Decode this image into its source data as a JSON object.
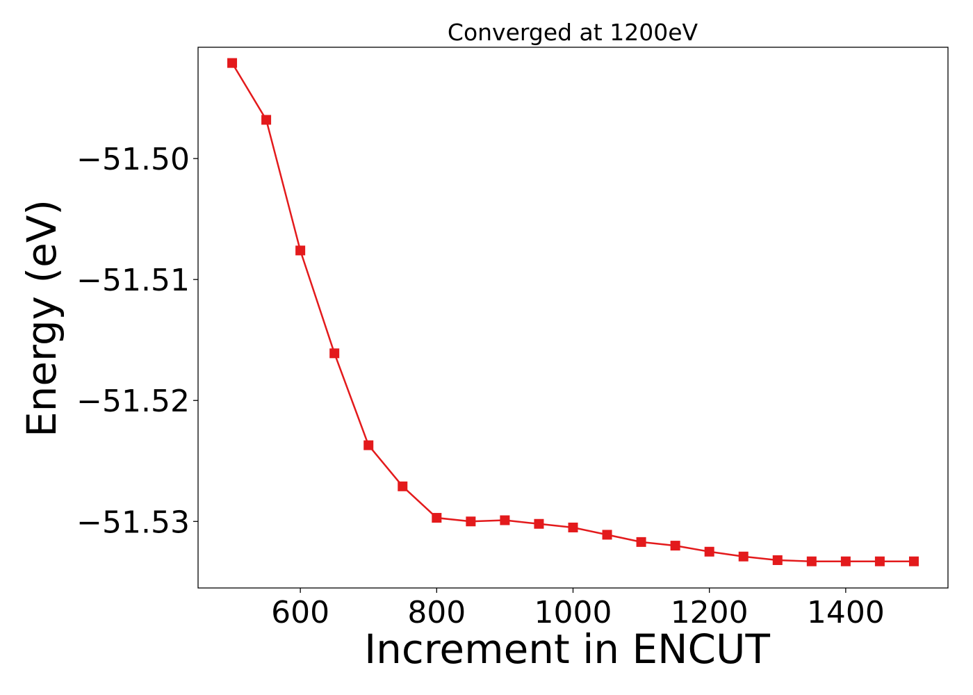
{
  "chart_data": {
    "type": "line",
    "title": "Converged at 1200eV",
    "xlabel": "Increment in ENCUT",
    "ylabel": "Energy (eV)",
    "xlim": [
      450,
      1550
    ],
    "ylim": [
      -51.5355,
      -51.4908
    ],
    "xticks": [
      600,
      800,
      1000,
      1200,
      1400
    ],
    "xtick_labels": [
      "600",
      "800",
      "1000",
      "1200",
      "1400"
    ],
    "yticks": [
      -51.5,
      -51.51,
      -51.52,
      -51.53
    ],
    "ytick_labels": [
      "−51.50",
      "−51.51",
      "−51.52",
      "−51.53"
    ],
    "grid": false,
    "series": [
      {
        "color": "#e31a1c",
        "marker": "square",
        "x": [
          500,
          550,
          600,
          650,
          700,
          750,
          800,
          850,
          900,
          950,
          1000,
          1050,
          1100,
          1150,
          1200,
          1250,
          1300,
          1350,
          1400,
          1450,
          1500
        ],
        "y": [
          -51.4921,
          -51.4968,
          -51.5076,
          -51.5161,
          -51.5237,
          -51.5271,
          -51.5297,
          -51.53,
          -51.5299,
          -51.5302,
          -51.5305,
          -51.5311,
          -51.5317,
          -51.532,
          -51.5325,
          -51.5329,
          -51.5332,
          -51.5333,
          -51.5333,
          -51.5333,
          -51.5333
        ]
      }
    ]
  }
}
